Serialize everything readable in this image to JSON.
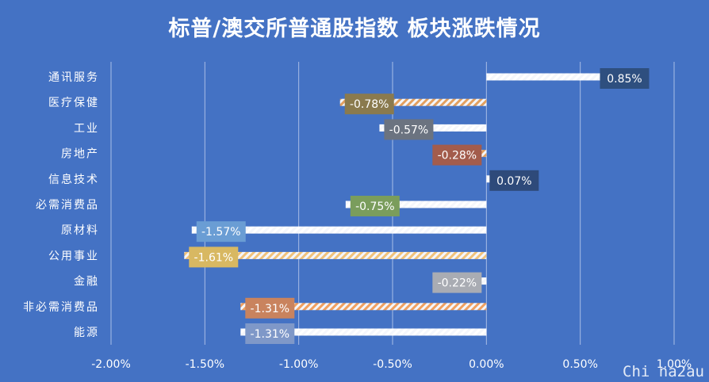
{
  "chart_data": {
    "type": "bar",
    "orientation": "horizontal",
    "title": "标普/澳交所普通股指数 板块涨跌情况",
    "categories": [
      "通讯服务",
      "医疗保健",
      "工业",
      "房地产",
      "信息技术",
      "必需消费品",
      "原材料",
      "公用事业",
      "金融",
      "非必需消费品",
      "能源"
    ],
    "values": [
      0.85,
      -0.78,
      -0.57,
      -0.28,
      0.07,
      -0.75,
      -1.57,
      -1.61,
      -0.22,
      -1.31,
      -1.31
    ],
    "value_labels": [
      "0.85%",
      "-0.78%",
      "-0.57%",
      "-0.28%",
      "0.07%",
      "-0.75%",
      "-1.57%",
      "-1.61%",
      "-0.22%",
      "-1.31%",
      "-1.31%"
    ],
    "xlim": [
      -2.0,
      1.0
    ],
    "xticks": [
      -2.0,
      -1.5,
      -1.0,
      -0.5,
      0.0,
      0.5,
      1.0
    ],
    "xtick_labels": [
      "-2.00%",
      "-1.50%",
      "-1.00%",
      "-0.50%",
      "0.00%",
      "0.50%",
      "1.00%"
    ],
    "grid": true,
    "bar_fill": "diagonal-hatch",
    "colors": [
      "#2e4f7f",
      "#8a7a4e",
      "#6b7380",
      "#a35c4c",
      "#2e4a7a",
      "#7a9d5c",
      "#6a9dd4",
      "#d8b862",
      "#a9acb3",
      "#c9835e",
      "#7f98c8"
    ],
    "bar_stripe_colors": [
      "#ffffff",
      "#e2a060",
      "#ffffff",
      "#e2a060",
      "#ffffff",
      "#ffffff",
      "#ffffff",
      "#f0c27a",
      "#ffffff",
      "#f0a060",
      "#ffffff"
    ]
  },
  "watermark": "Chi na2au"
}
